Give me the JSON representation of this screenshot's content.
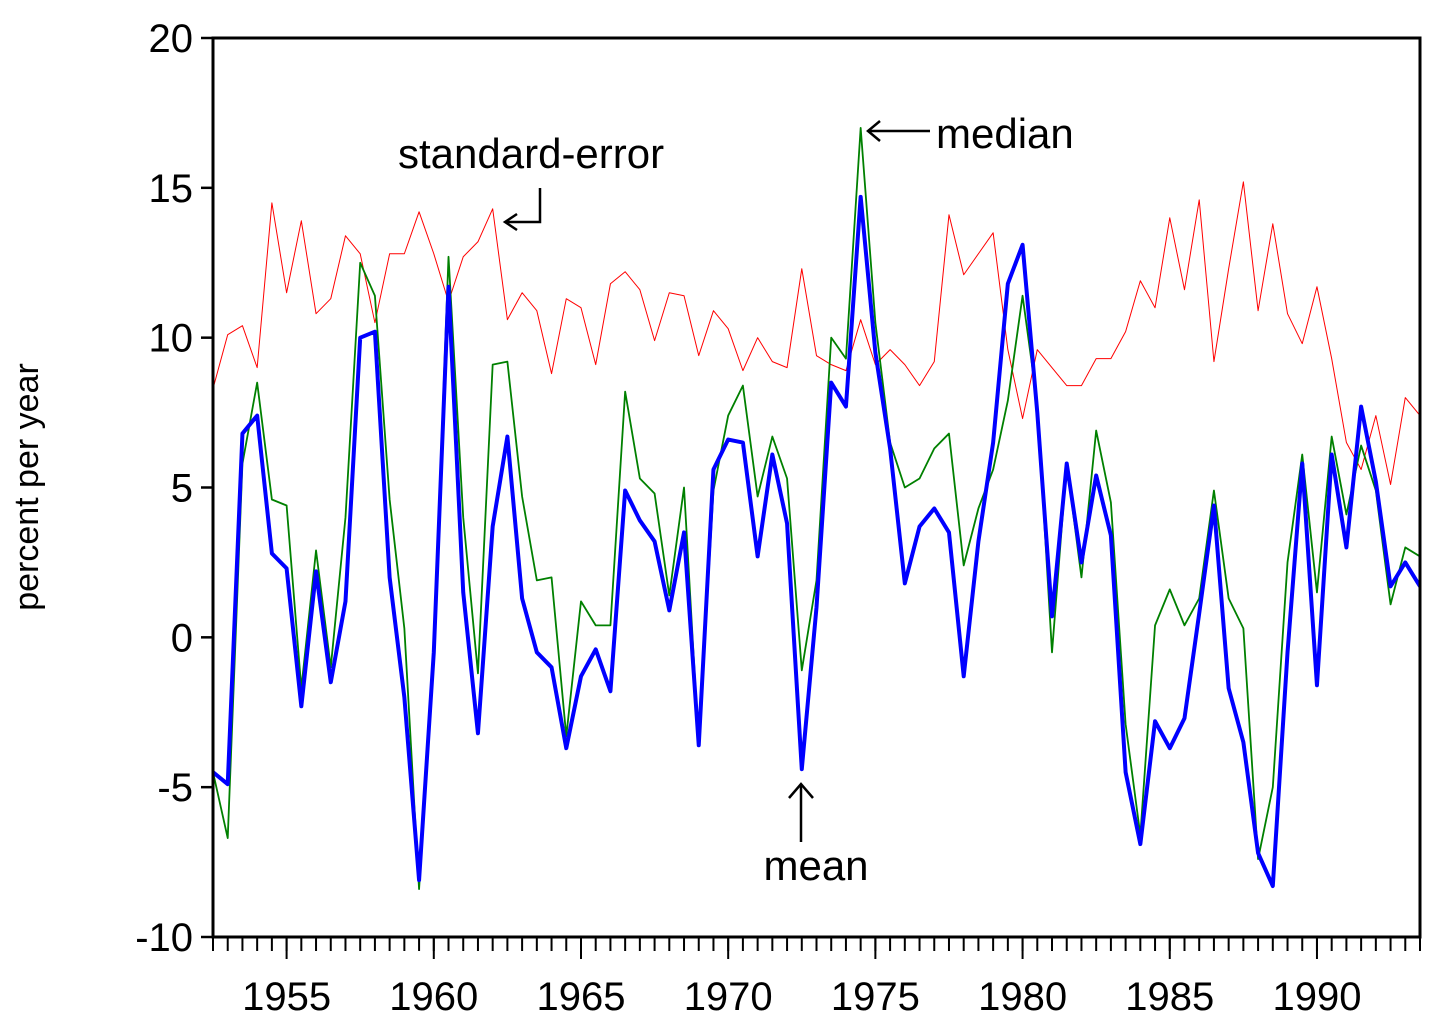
{
  "chart_data": {
    "type": "line",
    "y_label": "percent  per year",
    "x": [
      1952.5,
      1953,
      1953.5,
      1954,
      1954.5,
      1955,
      1955.5,
      1956,
      1956.5,
      1957,
      1957.5,
      1958,
      1958.5,
      1959,
      1959.5,
      1960,
      1960.5,
      1961,
      1961.5,
      1962,
      1962.5,
      1963,
      1963.5,
      1964,
      1964.5,
      1965,
      1965.5,
      1966,
      1966.5,
      1967,
      1967.5,
      1968,
      1968.5,
      1969,
      1969.5,
      1970,
      1970.5,
      1971,
      1971.5,
      1972,
      1972.5,
      1973,
      1973.5,
      1974,
      1974.5,
      1975,
      1975.5,
      1976,
      1976.5,
      1977,
      1977.5,
      1978,
      1978.5,
      1979,
      1979.5,
      1980,
      1980.5,
      1981,
      1981.5,
      1982,
      1982.5,
      1983,
      1983.5,
      1984,
      1984.5,
      1985,
      1985.5,
      1986,
      1986.5,
      1987,
      1987.5,
      1988,
      1988.5,
      1989,
      1989.5,
      1990,
      1990.5,
      1991,
      1991.5,
      1992,
      1992.5,
      1993,
      1993.5
    ],
    "series": [
      {
        "name": "standard-error",
        "color": "#ff0000",
        "width": 1,
        "values": [
          8.3,
          10.1,
          10.4,
          9.0,
          14.5,
          11.5,
          13.9,
          10.8,
          11.3,
          13.4,
          12.8,
          10.5,
          12.8,
          12.8,
          14.2,
          12.8,
          11.2,
          12.7,
          13.2,
          14.3,
          10.6,
          11.5,
          10.9,
          8.8,
          11.3,
          11.0,
          9.1,
          11.8,
          12.2,
          11.6,
          9.9,
          11.5,
          11.4,
          9.4,
          10.9,
          10.3,
          8.9,
          10.0,
          9.2,
          9.0,
          12.3,
          9.4,
          9.1,
          8.9,
          10.6,
          9.1,
          9.6,
          9.1,
          8.4,
          9.2,
          14.1,
          12.1,
          12.8,
          13.5,
          9.6,
          7.3,
          9.6,
          9.0,
          8.4,
          8.4,
          9.3,
          9.3,
          10.2,
          11.9,
          11.0,
          14.0,
          11.6,
          14.6,
          9.2,
          12.3,
          15.2,
          10.9,
          13.8,
          10.8,
          9.8,
          11.7,
          9.3,
          6.5,
          5.6,
          7.4,
          5.1,
          8.0,
          7.4
        ]
      },
      {
        "name": "median",
        "color": "#008000",
        "width": 1.8,
        "values": [
          -4.5,
          -6.7,
          5.8,
          8.5,
          4.6,
          4.4,
          -1.7,
          2.9,
          -1.0,
          4.0,
          12.5,
          11.4,
          4.6,
          0.3,
          -8.4,
          -0.4,
          12.7,
          4.0,
          -1.2,
          9.1,
          9.2,
          4.7,
          1.9,
          2.0,
          -3.3,
          1.2,
          0.4,
          0.4,
          8.2,
          5.3,
          4.8,
          1.4,
          5.0,
          -3.6,
          4.9,
          7.4,
          8.4,
          4.7,
          6.7,
          5.3,
          -1.1,
          1.9,
          10.0,
          9.3,
          17.0,
          10.5,
          6.5,
          5.0,
          5.3,
          6.3,
          6.8,
          2.4,
          4.3,
          5.6,
          7.9,
          11.4,
          7.8,
          -0.5,
          5.8,
          2.0,
          6.9,
          4.5,
          -2.9,
          -6.6,
          0.4,
          1.6,
          0.4,
          1.3,
          4.9,
          1.3,
          0.3,
          -7.4,
          -5.0,
          2.5,
          6.1,
          1.5,
          6.7,
          4.1,
          6.4,
          4.9,
          1.1,
          3.0,
          2.7
        ]
      },
      {
        "name": "mean",
        "color": "#0000ff",
        "width": 4,
        "values": [
          -4.5,
          -4.9,
          6.8,
          7.4,
          2.8,
          2.3,
          -2.3,
          2.2,
          -1.5,
          1.2,
          10.0,
          10.2,
          2.0,
          -2.0,
          -8.1,
          -0.5,
          11.7,
          1.5,
          -3.2,
          3.7,
          6.7,
          1.3,
          -0.5,
          -1.0,
          -3.7,
          -1.3,
          -0.4,
          -1.8,
          4.9,
          3.9,
          3.2,
          0.9,
          3.5,
          -3.6,
          5.6,
          6.6,
          6.5,
          2.7,
          6.1,
          3.8,
          -4.4,
          1.0,
          8.5,
          7.7,
          14.7,
          9.5,
          6.3,
          1.8,
          3.7,
          4.3,
          3.5,
          -1.3,
          3.2,
          6.5,
          11.8,
          13.1,
          7.5,
          0.7,
          5.8,
          2.5,
          5.4,
          3.4,
          -4.5,
          -6.9,
          -2.8,
          -3.7,
          -2.7,
          0.8,
          4.4,
          -1.7,
          -3.5,
          -7.2,
          -8.3,
          -0.5,
          5.8,
          -1.6,
          6.1,
          3.0,
          7.7,
          5.2,
          1.7,
          2.5,
          1.7
        ]
      }
    ],
    "xlim": [
      1952.5,
      1993.5
    ],
    "xticks": [
      1955,
      1960,
      1965,
      1970,
      1975,
      1980,
      1985,
      1990
    ],
    "ylim": [
      -10,
      20
    ],
    "yticks": [
      -10,
      -5,
      0,
      5,
      10,
      15,
      20
    ],
    "annotations": [
      {
        "text": "standard-error"
      },
      {
        "text": "median"
      },
      {
        "text": "mean"
      }
    ]
  }
}
